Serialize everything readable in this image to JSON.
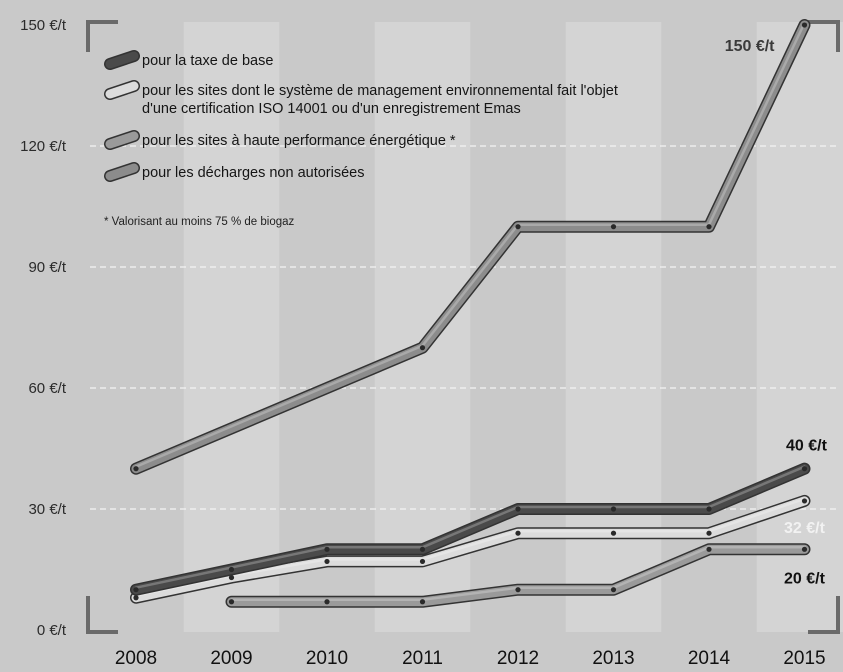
{
  "chart_data": {
    "type": "line",
    "x": [
      2008,
      2009,
      2010,
      2011,
      2012,
      2013,
      2014,
      2015
    ],
    "categories": [
      "2008",
      "2009",
      "2010",
      "2011",
      "2012",
      "2013",
      "2014",
      "2015"
    ],
    "ylim": [
      0,
      150
    ],
    "yticks": [
      0,
      30,
      60,
      90,
      120,
      150
    ],
    "yticklabels": [
      "0 €/t",
      "30 €/t",
      "60 €/t",
      "90 €/t",
      "120 €/t",
      "150 €/t"
    ],
    "grid": "horizontal dashed, alternating vertical column bands",
    "legend_position": "top-left",
    "series": [
      {
        "name": "pour la taxe de base",
        "color": "#4a4a4a",
        "x": [
          2008,
          2009,
          2010,
          2011,
          2012,
          2013,
          2014,
          2015
        ],
        "values": [
          10,
          15,
          20,
          20,
          30,
          30,
          30,
          40
        ]
      },
      {
        "name": "pour les sites dont le système de management environnemental fait l'objet d'une certification ISO 14001 ou d'un enregistrement Emas",
        "name_lines": [
          "pour les sites dont le système de management environnemental fait l'objet",
          "d'une certification ISO 14001 ou d'un enregistrement Emas"
        ],
        "color": "#dcdcdc",
        "x": [
          2008,
          2009,
          2010,
          2011,
          2012,
          2013,
          2014,
          2015
        ],
        "values": [
          8,
          13,
          17,
          17,
          24,
          24,
          24,
          32
        ]
      },
      {
        "name": "pour les sites à haute performance énergétique *",
        "color": "#9a9a9a",
        "x": [
          2009,
          2010,
          2011,
          2012,
          2013,
          2014,
          2015
        ],
        "values": [
          7,
          7,
          7,
          10,
          10,
          20,
          20
        ]
      },
      {
        "name": "pour les décharges non autorisées",
        "color": "#8c8c8c",
        "x": [
          2008,
          2011,
          2012,
          2013,
          2014,
          2015
        ],
        "values": [
          40,
          70,
          100,
          100,
          100,
          150
        ]
      }
    ],
    "annotations": [
      {
        "text": "150 €/t",
        "x": 2015,
        "y": 150,
        "color": "#3a3a3a"
      },
      {
        "text": "40 €/t",
        "x": 2015,
        "y": 40,
        "color": "#111111"
      },
      {
        "text": "32 €/t",
        "x": 2015,
        "y": 32,
        "color": "#f2f2f2"
      },
      {
        "text": "20 €/t",
        "x": 2015,
        "y": 20,
        "color": "#111111"
      }
    ],
    "note": "* Valorisant au moins 75 % de biogaz"
  }
}
